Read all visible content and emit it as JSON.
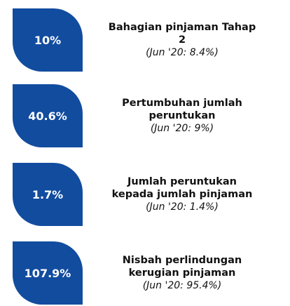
{
  "items": [
    {
      "value": "10%",
      "label": "Bahagian pinjaman Tahap 2",
      "note": "(Jun '20: 8.4%)"
    },
    {
      "value": "40.6%",
      "label": "Pertumbuhan jumlah peruntukan",
      "note": "(Jun '20: 9%)"
    },
    {
      "value": "1.7%",
      "label": "Jumlah peruntukan kepada jumlah pinjaman",
      "note": "(Jun '20: 1.4%)"
    },
    {
      "value": "107.9%",
      "label": "Nisbah perlindungan kerugian pinjaman",
      "note": "(Jun '20: 95.4%)"
    }
  ]
}
